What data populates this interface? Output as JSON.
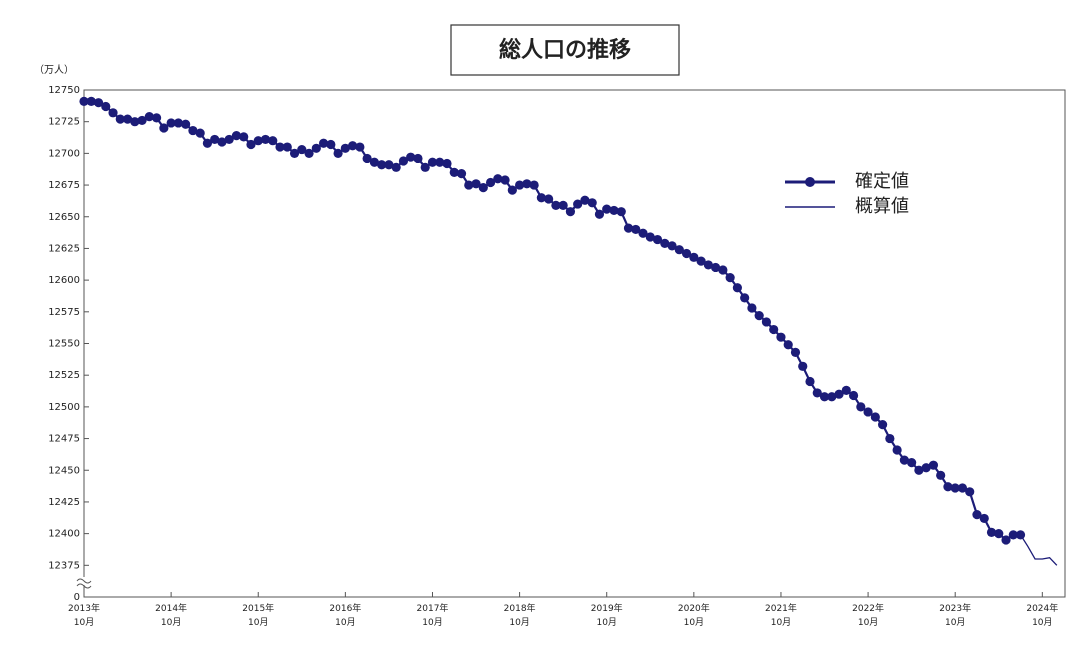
{
  "chart_data": {
    "type": "line",
    "title": "総人口の推移",
    "y_label": "（万人）",
    "categories": [
      "2013年10月",
      null,
      null,
      null,
      null,
      null,
      null,
      null,
      null,
      null,
      null,
      null,
      "2014年10月",
      null,
      null,
      null,
      null,
      null,
      null,
      null,
      null,
      null,
      null,
      null,
      "2015年10月",
      null,
      null,
      null,
      null,
      null,
      null,
      null,
      null,
      null,
      null,
      null,
      "2016年10月",
      null,
      null,
      null,
      null,
      null,
      null,
      null,
      null,
      null,
      null,
      null,
      "2017年10月",
      null,
      null,
      null,
      null,
      null,
      null,
      null,
      null,
      null,
      null,
      null,
      "2018年10月",
      null,
      null,
      null,
      null,
      null,
      null,
      null,
      null,
      null,
      null,
      null,
      "2019年10月",
      null,
      null,
      null,
      null,
      null,
      null,
      null,
      null,
      null,
      null,
      null,
      "2020年10月",
      null,
      null,
      null,
      null,
      null,
      null,
      null,
      null,
      null,
      null,
      null,
      "2021年10月",
      null,
      null,
      null,
      null,
      null,
      null,
      null,
      null,
      null,
      null,
      null,
      "2022年10月",
      null,
      null,
      null,
      null,
      null,
      null,
      null,
      null,
      null,
      null,
      null,
      "2023年10月",
      null,
      null,
      null,
      null,
      null,
      null,
      null,
      null,
      null,
      null,
      null,
      "2024年10月",
      null,
      null
    ],
    "series": [
      {
        "name": "確定値",
        "color": "#1c1c78",
        "markers": true,
        "values": [
          12741,
          12741,
          12740,
          12737,
          12732,
          12727,
          12727,
          12725,
          12726,
          12729,
          12728,
          12720,
          12724,
          12724,
          12723,
          12718,
          12716,
          12708,
          12711,
          12709,
          12711,
          12714,
          12713,
          12707,
          12710,
          12711,
          12710,
          12705,
          12705,
          12700,
          12703,
          12700,
          12704,
          12708,
          12707,
          12700,
          12704,
          12706,
          12705,
          12696,
          12693,
          12691,
          12691,
          12689,
          12694,
          12697,
          12696,
          12689,
          12693,
          12693,
          12692,
          12685,
          12684,
          12675,
          12676,
          12673,
          12677,
          12680,
          12679,
          12671,
          12675,
          12676,
          12675,
          12665,
          12664,
          12659,
          12659,
          12654,
          12660,
          12663,
          12661,
          12652,
          12656,
          12655,
          12654,
          12641,
          12640,
          12637,
          12634,
          12632,
          12629,
          12627,
          12624,
          12621,
          12618,
          12615,
          12612,
          12610,
          12608,
          12602,
          12594,
          12586,
          12578,
          12572,
          12567,
          12561,
          12555,
          12549,
          12543,
          12532,
          12520,
          12511,
          12508,
          12508,
          12510,
          12513,
          12509,
          12500,
          12496,
          12492,
          12486,
          12475,
          12466,
          12458,
          12456,
          12450,
          12452,
          12454,
          12446,
          12437,
          12436,
          12436,
          12433,
          12415,
          12412,
          12401,
          12400,
          12395,
          12399,
          12399,
          null,
          null,
          null,
          null,
          null
        ]
      },
      {
        "name": "概算値",
        "color": "#1c1c78",
        "markers": false,
        "values": [
          null,
          null,
          null,
          null,
          null,
          null,
          null,
          null,
          null,
          null,
          null,
          null,
          null,
          null,
          null,
          null,
          null,
          null,
          null,
          null,
          null,
          null,
          null,
          null,
          null,
          null,
          null,
          null,
          null,
          null,
          null,
          null,
          null,
          null,
          null,
          null,
          null,
          null,
          null,
          null,
          null,
          null,
          null,
          null,
          null,
          null,
          null,
          null,
          null,
          null,
          null,
          null,
          null,
          null,
          null,
          null,
          null,
          null,
          null,
          null,
          null,
          null,
          null,
          null,
          null,
          null,
          null,
          null,
          null,
          null,
          null,
          null,
          null,
          null,
          null,
          null,
          null,
          null,
          null,
          null,
          null,
          null,
          null,
          null,
          null,
          null,
          null,
          null,
          null,
          null,
          null,
          null,
          null,
          null,
          null,
          null,
          null,
          null,
          null,
          null,
          null,
          null,
          null,
          null,
          null,
          null,
          null,
          null,
          null,
          null,
          null,
          null,
          null,
          null,
          null,
          null,
          null,
          null,
          null,
          null,
          null,
          null,
          null,
          null,
          null,
          null,
          null,
          null,
          null,
          12399,
          12390,
          12380,
          12380,
          12381,
          12375
        ]
      }
    ],
    "ylim": [
      0,
      12750
    ],
    "y_break": [
      0,
      12350
    ],
    "yticks": [
      {
        "value": 0,
        "label": "0"
      },
      12375,
      12400,
      12425,
      12450,
      12475,
      12500,
      12525,
      12550,
      12575,
      12600,
      12625,
      12650,
      12675,
      12700,
      12725,
      12750
    ],
    "grid": false,
    "legend": "upper right"
  }
}
